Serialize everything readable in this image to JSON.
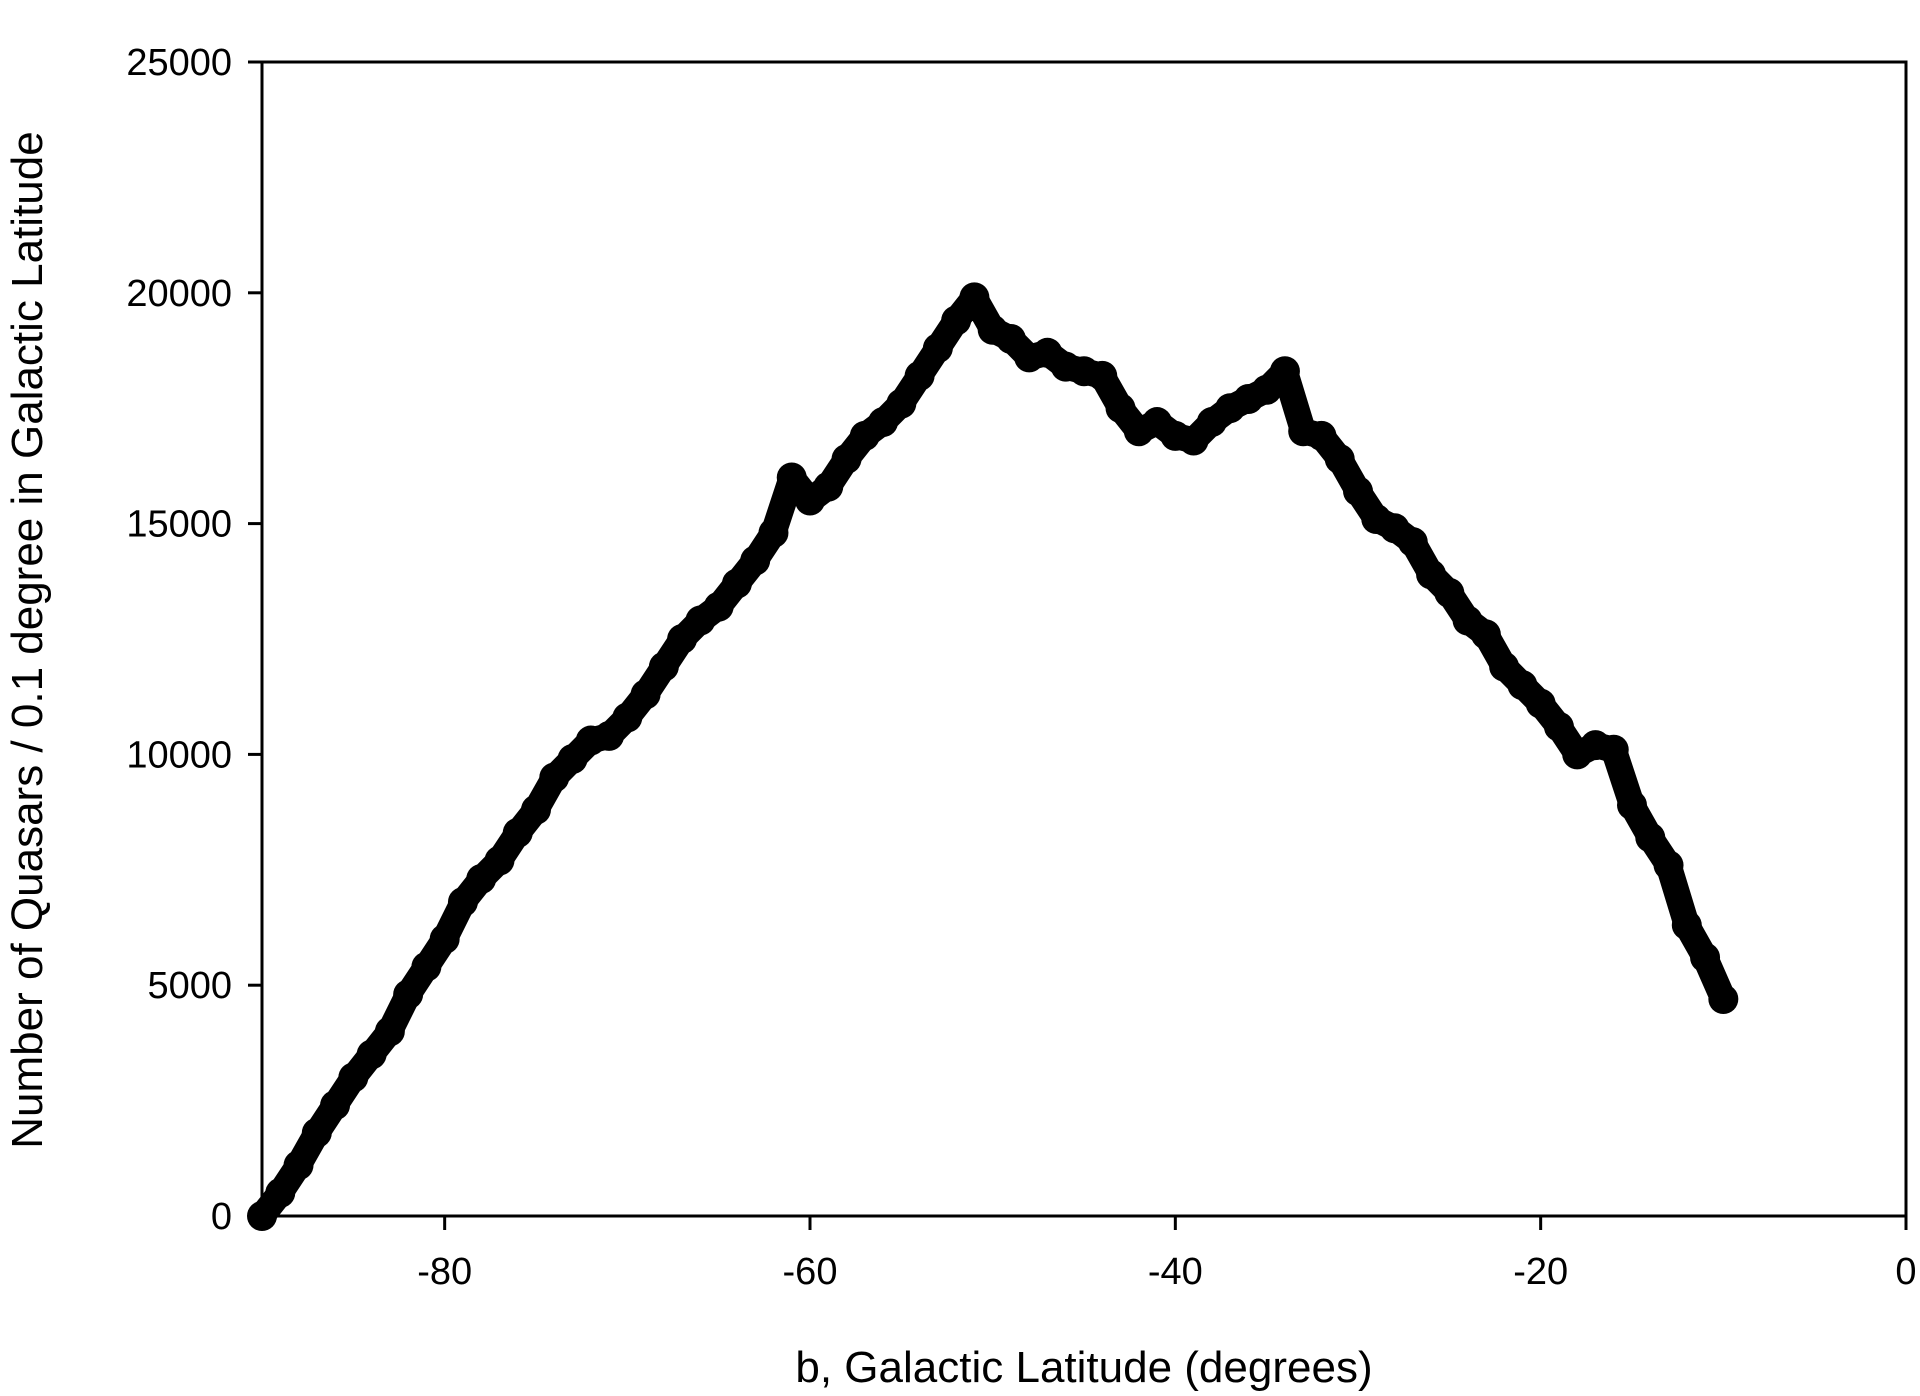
{
  "chart_data": {
    "type": "scatter",
    "title": "",
    "xlabel": "b, Galactic Latitude (degrees)",
    "ylabel": "Number of Quasars / 0.1 degree in Galactic Latitude",
    "xlim": [
      -90,
      0
    ],
    "ylim": [
      0,
      25000
    ],
    "x_ticks": [
      -80,
      -60,
      -40,
      -20,
      0
    ],
    "y_ticks": [
      0,
      5000,
      10000,
      15000,
      20000,
      25000
    ],
    "grid": false,
    "legend": "none",
    "marker_color": "#000000",
    "series": [
      {
        "x": [
          -90,
          -89,
          -88,
          -87,
          -86,
          -85,
          -84,
          -83,
          -82,
          -81,
          -80,
          -79,
          -78,
          -77,
          -76,
          -75,
          -74,
          -73,
          -72,
          -71,
          -70,
          -69,
          -68,
          -67,
          -66,
          -65,
          -64,
          -63,
          -62,
          -61,
          -60,
          -59,
          -58,
          -57,
          -56,
          -55,
          -54,
          -53,
          -52,
          -51,
          -50,
          -49,
          -48,
          -47,
          -46,
          -45,
          -44,
          -43,
          -42,
          -41,
          -40,
          -39,
          -38,
          -37,
          -36,
          -35,
          -34,
          -33,
          -32,
          -31,
          -30,
          -29,
          -28,
          -27,
          -26,
          -25,
          -24,
          -23,
          -22,
          -21,
          -20,
          -19,
          -18,
          -17,
          -16,
          -15,
          -14,
          -13,
          -12,
          -11,
          -10
        ],
        "y": [
          0,
          500,
          1100,
          1800,
          2400,
          3000,
          3500,
          4000,
          4800,
          5400,
          6000,
          6800,
          7300,
          7700,
          8300,
          8800,
          9500,
          9900,
          10300,
          10400,
          10800,
          11300,
          11900,
          12500,
          12900,
          13200,
          13700,
          14200,
          14800,
          16000,
          15500,
          15800,
          16400,
          16900,
          17200,
          17600,
          18200,
          18800,
          19400,
          19900,
          19200,
          19000,
          18600,
          18700,
          18400,
          18300,
          18200,
          17500,
          17000,
          17200,
          16900,
          16800,
          17200,
          17500,
          17700,
          17900,
          18300,
          17000,
          16900,
          16400,
          15700,
          15100,
          14900,
          14600,
          13900,
          13500,
          12900,
          12600,
          11900,
          11500,
          11100,
          10600,
          10000,
          10200,
          10100,
          8900,
          8200,
          7600,
          6300,
          5600,
          4700
        ]
      }
    ]
  }
}
